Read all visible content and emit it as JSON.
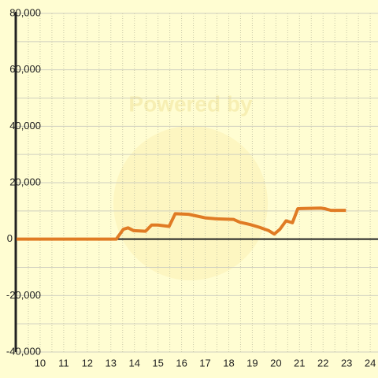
{
  "chart_data": {
    "type": "line",
    "watermark": "Powered by",
    "x": [
      9,
      13.23,
      13.53,
      13.73,
      13.97,
      14.47,
      14.73,
      15.0,
      15.47,
      15.73,
      16.3,
      17.03,
      17.47,
      18.2,
      18.47,
      18.9,
      19.3,
      19.7,
      19.93,
      20.17,
      20.43,
      20.7,
      20.93,
      21.9,
      22.07,
      22.33,
      22.97
    ],
    "series": [
      {
        "color": "#e07b24",
        "values": [
          0,
          0,
          3500,
          4000,
          3000,
          2800,
          5000,
          5000,
          4500,
          9000,
          8800,
          7500,
          7200,
          7000,
          6000,
          5200,
          4200,
          3000,
          1800,
          3500,
          6500,
          5800,
          10800,
          11000,
          10800,
          10200,
          10200
        ]
      }
    ],
    "xlim": [
      9,
      24.33
    ],
    "xticks": [
      10,
      11,
      12,
      13,
      14,
      15,
      16,
      17,
      18,
      19,
      20,
      21,
      22,
      23,
      24
    ],
    "xminor_ticks": [
      9.5,
      10.5,
      11.5,
      12.5,
      13.5,
      14.5,
      15.5,
      16.5,
      17.5,
      18.5,
      19.5,
      20.5,
      21.5,
      22.5,
      23.5
    ],
    "ylim": [
      -40000,
      80000
    ],
    "yticks": [
      {
        "value": -40000,
        "label": "-40,000"
      },
      {
        "value": -20000,
        "label": "-20,000"
      },
      0,
      {
        "value": 20000,
        "label": "20,000"
      },
      {
        "value": 40000,
        "label": "40,000"
      },
      {
        "value": 60000,
        "label": "60,000"
      },
      {
        "value": 80000,
        "label": "80,000"
      }
    ],
    "yminor_ticks": [
      -30000,
      -10000,
      10000,
      30000,
      50000,
      70000
    ],
    "grid": true
  }
}
